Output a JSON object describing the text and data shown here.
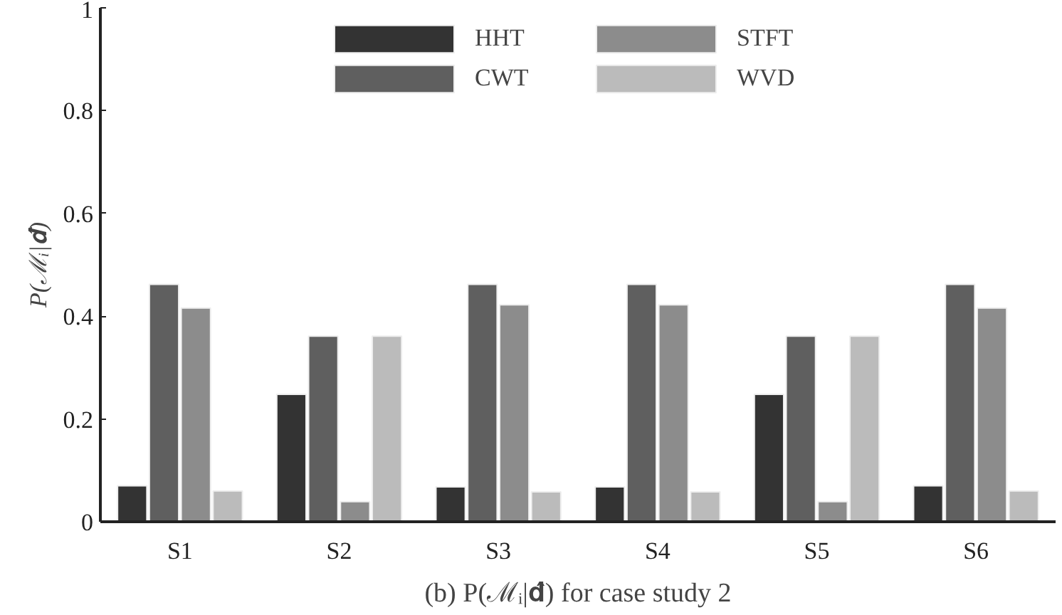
{
  "chart_data": {
    "type": "bar",
    "title": "(b) P(ℳᵢ|𝐝̂) for case study 2",
    "ylabel": "P(ℳᵢ|𝐝̂)",
    "categories": [
      "S1",
      "S2",
      "S3",
      "S4",
      "S5",
      "S6"
    ],
    "series": [
      {
        "name": "HHT",
        "color": "#333333",
        "values": [
          0.07,
          0.248,
          0.068,
          0.068,
          0.248,
          0.07
        ]
      },
      {
        "name": "CWT",
        "color": "#5f5f5f",
        "values": [
          0.462,
          0.361,
          0.462,
          0.462,
          0.361,
          0.462
        ]
      },
      {
        "name": "STFT",
        "color": "#8c8c8c",
        "values": [
          0.416,
          0.039,
          0.422,
          0.422,
          0.039,
          0.416
        ]
      },
      {
        "name": "WVD",
        "color": "#bbbbbb",
        "values": [
          0.06,
          0.361,
          0.058,
          0.058,
          0.361,
          0.06
        ]
      }
    ],
    "ylim": [
      0,
      1
    ],
    "yticks": [
      0,
      0.2,
      0.4,
      0.6,
      0.8,
      1
    ],
    "grid": false,
    "legend": "top"
  }
}
